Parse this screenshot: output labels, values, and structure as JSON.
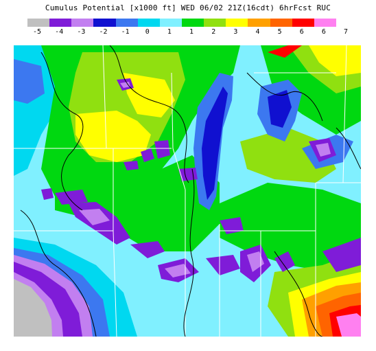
{
  "header": {
    "title": "Cumulus Potential [x1000 ft]  WED 06/02 21Z(16cdt) 6hrFcst RUC"
  },
  "legend": {
    "colors": [
      "#c0c0c0",
      "#7f1cd8",
      "#c27ff0",
      "#1010d0",
      "#3c78f0",
      "#00d8f0",
      "#80f0ff",
      "#00d810",
      "#90e010",
      "#ffff00",
      "#ffa000",
      "#ff6400",
      "#ff0000",
      "#ff80f0"
    ],
    "labels": [
      "-5",
      "-4",
      "-3",
      "-2",
      "-1",
      "0",
      "1",
      "1",
      "2",
      "3",
      "4",
      "5",
      "6",
      "6",
      "7"
    ]
  },
  "map": {
    "palette": {
      "gray": "#c0c0c0",
      "purple": "#7f1cd8",
      "lavender": "#c27ff0",
      "blue": "#1010d0",
      "medium_blue": "#3c78f0",
      "cyan": "#00d8f0",
      "light_cyan": "#80f0ff",
      "green": "#00d810",
      "lime": "#90e010",
      "yellow": "#ffff00",
      "orange": "#ffa000",
      "dark_orange": "#ff6400",
      "red": "#ff0000",
      "pink": "#ff80f0",
      "boundary": "#ffffff",
      "contour": "#000000"
    }
  }
}
